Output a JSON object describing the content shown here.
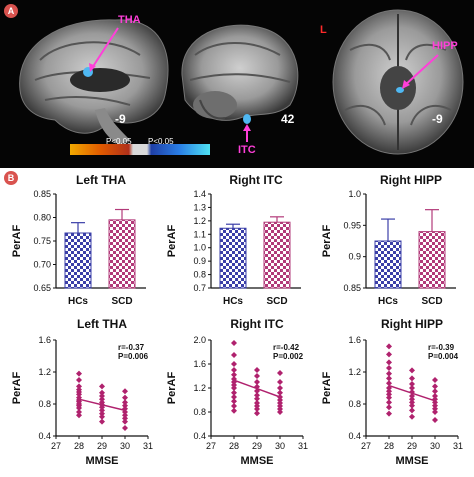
{
  "panel_a": {
    "badge": "A",
    "labels": {
      "tha": "THA",
      "itc": "ITC",
      "hipp": "HIPP",
      "orientation": "L"
    },
    "slices": [
      "-9",
      "42",
      "-9"
    ],
    "colorbar": {
      "left_text": "P<0.05",
      "right_text": "P<0.05",
      "colors": [
        "#f2a900",
        "#e05a00",
        "#b0301a",
        "#1f3fa6",
        "#2a7ee6",
        "#4fe1f2"
      ]
    }
  },
  "panel_b": {
    "badge": "B"
  },
  "chart_data": [
    {
      "type": "bar",
      "title": "Left THA",
      "ylabel": "PerAF",
      "categories": [
        "HCs",
        "SCD"
      ],
      "values": [
        0.767,
        0.795
      ],
      "errors": [
        0.022,
        0.022
      ],
      "ylim": [
        0.65,
        0.85
      ],
      "yticks": [
        "0.65",
        "0.70",
        "0.75",
        "0.80",
        "0.85"
      ],
      "colors": [
        "#3b3fa8",
        "#b23a79"
      ]
    },
    {
      "type": "bar",
      "title": "Right ITC",
      "ylabel": "PerAF",
      "categories": [
        "HCs",
        "SCD"
      ],
      "values": [
        1.145,
        1.19
      ],
      "errors": [
        0.03,
        0.04
      ],
      "ylim": [
        0.7,
        1.4
      ],
      "yticks": [
        "0.7",
        "0.8",
        "0.9",
        "1.0",
        "1.1",
        "1.2",
        "1.3",
        "1.4"
      ],
      "colors": [
        "#3b3fa8",
        "#b23a79"
      ]
    },
    {
      "type": "bar",
      "title": "Right HIPP",
      "ylabel": "PerAF",
      "categories": [
        "HCs",
        "SCD"
      ],
      "values": [
        0.925,
        0.94
      ],
      "errors": [
        0.035,
        0.035
      ],
      "ylim": [
        0.85,
        1.0
      ],
      "yticks": [
        "0.85",
        "0.9",
        "0.95",
        "1.0"
      ],
      "yticks_shown": [
        "0.85",
        "0.9",
        "0.95",
        "1.0"
      ],
      "colors": [
        "#3b3fa8",
        "#b23a79"
      ]
    },
    {
      "type": "scatter",
      "title": "Left THA",
      "xlabel": "MMSE",
      "ylabel": "PerAF",
      "xlim": [
        27,
        31
      ],
      "ylim": [
        0.4,
        1.6
      ],
      "xticks": [
        "27",
        "28",
        "29",
        "30",
        "31"
      ],
      "yticks": [
        "0.4",
        "0.8",
        "1.2",
        "1.6"
      ],
      "stats": [
        "r=-0.37",
        "P=0.006"
      ],
      "fit": {
        "x": [
          28,
          30
        ],
        "y": [
          0.86,
          0.72
        ]
      },
      "x": [
        28,
        28,
        28,
        28,
        28,
        28,
        28,
        28,
        28,
        28,
        28,
        28,
        28,
        28,
        29,
        29,
        29,
        29,
        29,
        29,
        29,
        29,
        29,
        29,
        29,
        30,
        30,
        30,
        30,
        30,
        30,
        30,
        30,
        30,
        30
      ],
      "y": [
        1.18,
        1.1,
        1.02,
        0.98,
        0.95,
        0.92,
        0.88,
        0.85,
        0.83,
        0.8,
        0.78,
        0.75,
        0.7,
        0.66,
        1.02,
        0.94,
        0.9,
        0.86,
        0.82,
        0.79,
        0.76,
        0.72,
        0.68,
        0.64,
        0.58,
        0.96,
        0.88,
        0.82,
        0.78,
        0.74,
        0.7,
        0.66,
        0.62,
        0.58,
        0.5
      ],
      "color": "#b0226e"
    },
    {
      "type": "scatter",
      "title": "Right ITC",
      "xlabel": "MMSE",
      "ylabel": "PerAF",
      "xlim": [
        27,
        31
      ],
      "ylim": [
        0.4,
        2.0
      ],
      "xticks": [
        "27",
        "28",
        "29",
        "30",
        "31"
      ],
      "yticks": [
        "0.4",
        "0.8",
        "1.2",
        "1.6",
        "2.0"
      ],
      "stats": [
        "r=-0.42",
        "P=0.002"
      ],
      "fit": {
        "x": [
          28,
          30
        ],
        "y": [
          1.33,
          1.05
        ]
      },
      "x": [
        28,
        28,
        28,
        28,
        28,
        28,
        28,
        28,
        28,
        28,
        28,
        28,
        28,
        28,
        29,
        29,
        29,
        29,
        29,
        29,
        29,
        29,
        29,
        29,
        29,
        30,
        30,
        30,
        30,
        30,
        30,
        30,
        30,
        30,
        30
      ],
      "y": [
        1.95,
        1.75,
        1.6,
        1.5,
        1.42,
        1.35,
        1.3,
        1.25,
        1.2,
        1.12,
        1.05,
        0.98,
        0.9,
        0.82,
        1.5,
        1.4,
        1.3,
        1.22,
        1.15,
        1.08,
        1.02,
        0.95,
        0.9,
        0.85,
        0.78,
        1.45,
        1.3,
        1.2,
        1.12,
        1.05,
        1.0,
        0.95,
        0.9,
        0.85,
        0.8
      ],
      "color": "#b0226e"
    },
    {
      "type": "scatter",
      "title": "Right HIPP",
      "xlabel": "MMSE",
      "ylabel": "PerAF",
      "xlim": [
        27,
        31
      ],
      "ylim": [
        0.4,
        1.6
      ],
      "xticks": [
        "27",
        "28",
        "29",
        "30",
        "31"
      ],
      "yticks": [
        "0.4",
        "0.8",
        "1.2",
        "1.6"
      ],
      "stats": [
        "r=-0.39",
        "P=0.004"
      ],
      "fit": {
        "x": [
          28,
          30
        ],
        "y": [
          1.03,
          0.84
        ]
      },
      "x": [
        28,
        28,
        28,
        28,
        28,
        28,
        28,
        28,
        28,
        28,
        28,
        28,
        28,
        28,
        29,
        29,
        29,
        29,
        29,
        29,
        29,
        29,
        29,
        29,
        29,
        30,
        30,
        30,
        30,
        30,
        30,
        30,
        30,
        30,
        30
      ],
      "y": [
        1.52,
        1.42,
        1.32,
        1.25,
        1.18,
        1.12,
        1.06,
        1.0,
        0.96,
        0.92,
        0.88,
        0.82,
        0.76,
        0.68,
        1.22,
        1.12,
        1.05,
        1.0,
        0.95,
        0.9,
        0.86,
        0.82,
        0.78,
        0.72,
        0.64,
        1.1,
        1.02,
        0.96,
        0.9,
        0.86,
        0.82,
        0.78,
        0.74,
        0.7,
        0.6
      ],
      "color": "#b0226e"
    }
  ]
}
